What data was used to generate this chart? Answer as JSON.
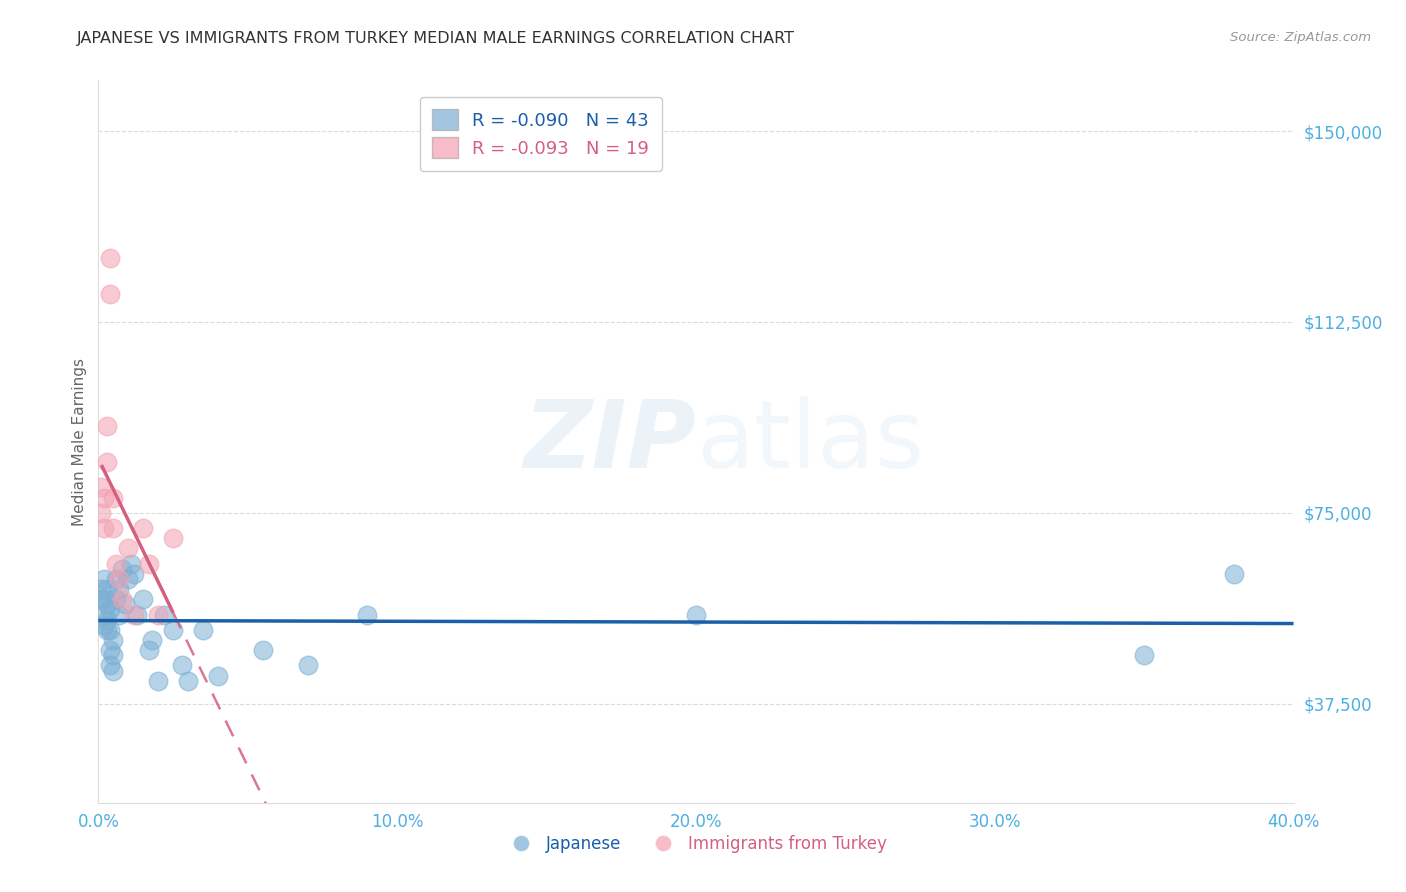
{
  "title": "JAPANESE VS IMMIGRANTS FROM TURKEY MEDIAN MALE EARNINGS CORRELATION CHART",
  "source": "Source: ZipAtlas.com",
  "ylabel": "Median Male Earnings",
  "xlim": [
    0.0,
    0.4
  ],
  "ylim": [
    18000,
    160000
  ],
  "yticks": [
    37500,
    75000,
    112500,
    150000
  ],
  "ytick_labels": [
    "$37,500",
    "$75,000",
    "$112,500",
    "$150,000"
  ],
  "xticks": [
    0.0,
    0.1,
    0.2,
    0.3,
    0.4
  ],
  "xtick_labels": [
    "0.0%",
    "10.0%",
    "20.0%",
    "30.0%",
    "40.0%"
  ],
  "background_color": "#ffffff",
  "grid_color": "#cccccc",
  "watermark_zip": "ZIP",
  "watermark_atlas": "atlas",
  "blue_color": "#7bafd4",
  "pink_color": "#f4a0b0",
  "blue_line_color": "#1a5fa8",
  "pink_line_color": "#d46080",
  "axis_label_color": "#4db0e0",
  "title_color": "#333333",
  "japanese_x": [
    0.001,
    0.001,
    0.002,
    0.002,
    0.002,
    0.002,
    0.003,
    0.003,
    0.003,
    0.003,
    0.004,
    0.004,
    0.004,
    0.004,
    0.005,
    0.005,
    0.005,
    0.006,
    0.006,
    0.007,
    0.007,
    0.008,
    0.009,
    0.01,
    0.011,
    0.012,
    0.013,
    0.015,
    0.017,
    0.018,
    0.02,
    0.022,
    0.025,
    0.028,
    0.03,
    0.035,
    0.04,
    0.055,
    0.07,
    0.09,
    0.2,
    0.35,
    0.38
  ],
  "japanese_y": [
    60000,
    58000,
    62000,
    58000,
    55000,
    53000,
    60000,
    57000,
    54000,
    52000,
    56000,
    52000,
    48000,
    45000,
    50000,
    47000,
    44000,
    62000,
    58000,
    60000,
    55000,
    64000,
    57000,
    62000,
    65000,
    63000,
    55000,
    58000,
    48000,
    50000,
    42000,
    55000,
    52000,
    45000,
    42000,
    52000,
    43000,
    48000,
    45000,
    55000,
    55000,
    47000,
    63000
  ],
  "turkey_x": [
    0.001,
    0.001,
    0.002,
    0.002,
    0.003,
    0.003,
    0.004,
    0.004,
    0.005,
    0.005,
    0.006,
    0.007,
    0.008,
    0.01,
    0.012,
    0.015,
    0.017,
    0.02,
    0.025
  ],
  "turkey_y": [
    80000,
    75000,
    78000,
    72000,
    92000,
    85000,
    125000,
    118000,
    78000,
    72000,
    65000,
    62000,
    58000,
    68000,
    55000,
    72000,
    65000,
    55000,
    70000
  ]
}
